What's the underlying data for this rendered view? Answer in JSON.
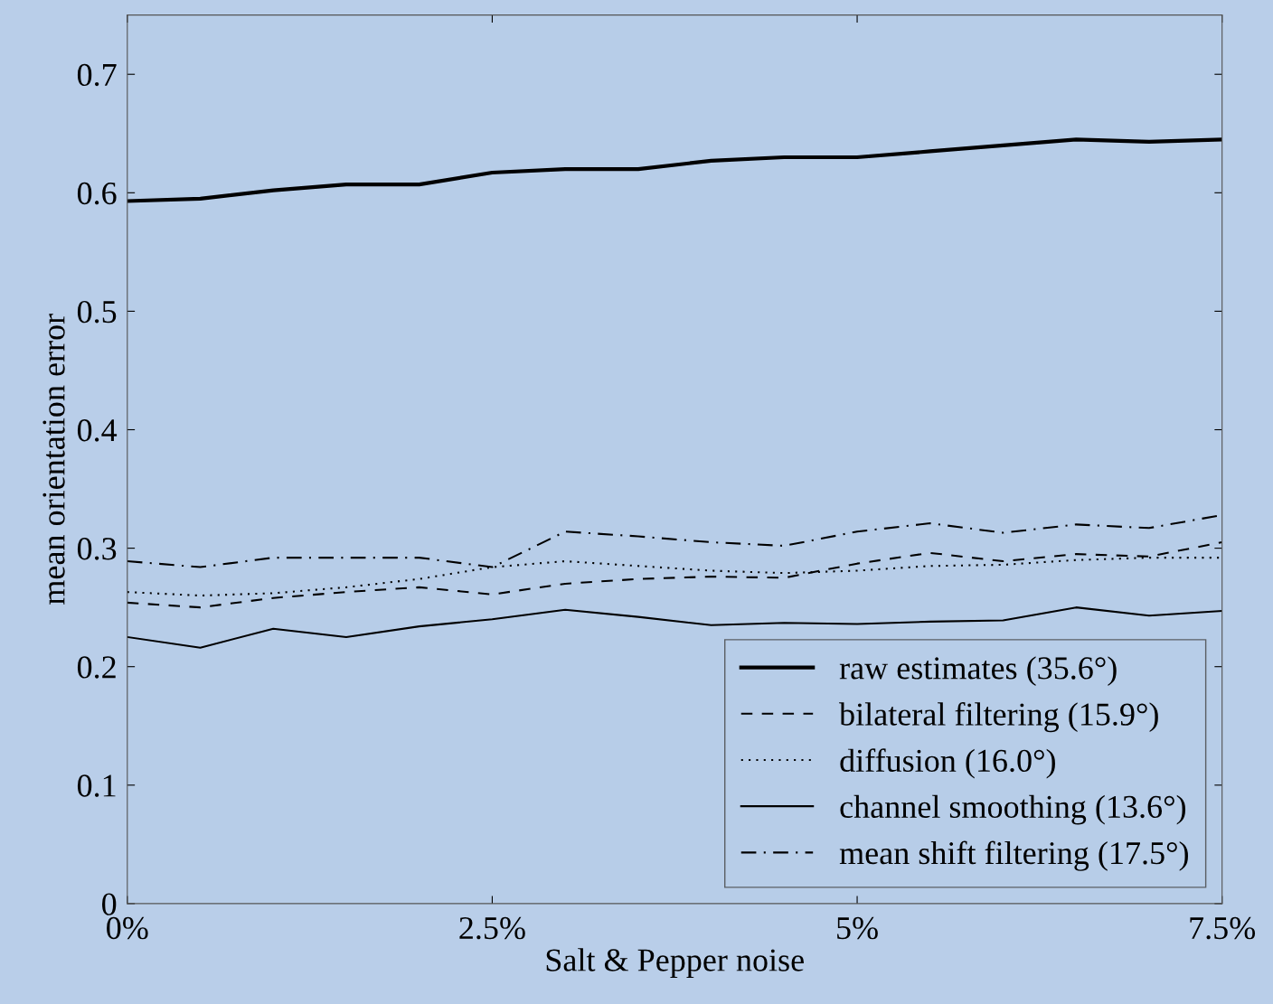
{
  "chart_data": {
    "type": "line",
    "xlabel": "Salt & Pepper noise",
    "ylabel": "mean orientation error",
    "x": [
      0,
      0.5,
      1,
      1.5,
      2,
      2.5,
      3,
      3.5,
      4,
      4.5,
      5,
      5.5,
      6,
      6.5,
      7,
      7.5
    ],
    "xlim": [
      0,
      7.5
    ],
    "xticks": [
      {
        "value": 0,
        "label": "0%"
      },
      {
        "value": 2.5,
        "label": "2.5%"
      },
      {
        "value": 5,
        "label": "5%"
      },
      {
        "value": 7.5,
        "label": "7.5%"
      }
    ],
    "ylim": [
      0,
      0.75
    ],
    "yticks": [
      0,
      0.1,
      0.2,
      0.3,
      0.4,
      0.5,
      0.6,
      0.7
    ],
    "grid": false,
    "legend": "bottom right",
    "marker": "none",
    "series": [
      {
        "name": "raw estimates (35.6°)",
        "color": "#000000",
        "line_style": "solid",
        "values": [
          0.593,
          0.595,
          0.602,
          0.607,
          0.607,
          0.617,
          0.62,
          0.62,
          0.627,
          0.63,
          0.63,
          0.635,
          0.64,
          0.645,
          0.643,
          0.645
        ]
      },
      {
        "name": "bilateral filtering (15.9°)",
        "color": "#000000",
        "line_style": "dashed",
        "values": [
          0.254,
          0.25,
          0.258,
          0.263,
          0.267,
          0.261,
          0.27,
          0.274,
          0.276,
          0.275,
          0.287,
          0.296,
          0.289,
          0.295,
          0.293,
          0.305
        ]
      },
      {
        "name": "diffusion (16.0°)",
        "color": "#000000",
        "line_style": "dotted",
        "values": [
          0.263,
          0.26,
          0.262,
          0.267,
          0.274,
          0.284,
          0.289,
          0.285,
          0.281,
          0.279,
          0.281,
          0.285,
          0.286,
          0.29,
          0.292,
          0.292
        ]
      },
      {
        "name": "channel smoothing (13.6°)",
        "color": "#000000",
        "line_style": "solid",
        "values": [
          0.225,
          0.216,
          0.232,
          0.225,
          0.234,
          0.24,
          0.248,
          0.242,
          0.235,
          0.237,
          0.236,
          0.238,
          0.239,
          0.25,
          0.243,
          0.247
        ]
      },
      {
        "name": "mean shift filtering (17.5°)",
        "color": "#000000",
        "line_style": "dashdot",
        "values": [
          0.289,
          0.284,
          0.292,
          0.292,
          0.292,
          0.284,
          0.314,
          0.31,
          0.305,
          0.302,
          0.314,
          0.321,
          0.313,
          0.32,
          0.317,
          0.328
        ]
      }
    ]
  }
}
